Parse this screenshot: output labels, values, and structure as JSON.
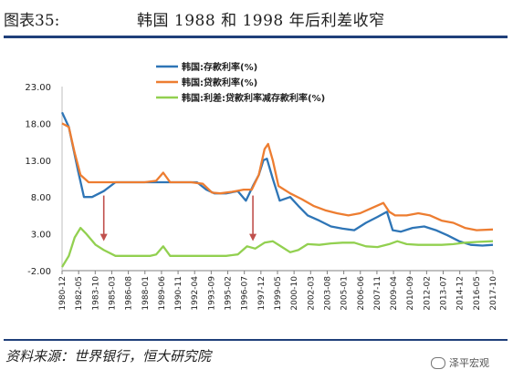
{
  "header": {
    "figure_label": "图表35:",
    "title": "韩国 1988 和 1998 年后利差收窄"
  },
  "footer": {
    "source": "资料来源：世界银行，恒大研究院",
    "watermark": "泽平宏观",
    "watermark_icon": "wechat-icon"
  },
  "colors": {
    "deposit": "#2e75b6",
    "loan": "#ed7d31",
    "spread": "#92d050",
    "arrow": "#c0504d",
    "rule": "#1f3f7a"
  },
  "chart_data": {
    "type": "line",
    "ylim": [
      -2,
      23
    ],
    "yticks": [
      "23.00",
      "18.00",
      "13.00",
      "8.00",
      "3.00",
      "-2.00"
    ],
    "ytick_values": [
      23,
      18,
      13,
      8,
      3,
      -2
    ],
    "xtick_labels": [
      "1980-12",
      "1982-05",
      "1983-10",
      "1985-03",
      "1986-08",
      "1988-01",
      "1989-06",
      "1990-11",
      "1992-04",
      "1993-09",
      "1995-02",
      "1996-07",
      "1997-12",
      "1999-05",
      "2000-10",
      "2002-03",
      "2003-08",
      "2005-01",
      "2006-06",
      "2007-11",
      "2009-04",
      "2010-09",
      "2012-02",
      "2013-07",
      "2014-12",
      "2016-05",
      "2017-10"
    ],
    "x_start": 1980.92,
    "x_end": 2017.9,
    "legend": {
      "placement": "top-center"
    },
    "series": [
      {
        "name": "韩国:存款利率(%)",
        "key": "deposit",
        "points": [
          [
            1980.92,
            19.5
          ],
          [
            1981.5,
            17.5
          ],
          [
            1982.3,
            11.5
          ],
          [
            1982.8,
            8.0
          ],
          [
            1983.5,
            8.0
          ],
          [
            1984.5,
            8.8
          ],
          [
            1985.5,
            10.0
          ],
          [
            1986.5,
            10.0
          ],
          [
            1987.5,
            10.0
          ],
          [
            1988.5,
            10.0
          ],
          [
            1989.5,
            10.0
          ],
          [
            1990.5,
            10.0
          ],
          [
            1991.5,
            10.0
          ],
          [
            1992.5,
            10.0
          ],
          [
            1993.3,
            9.0
          ],
          [
            1994.0,
            8.5
          ],
          [
            1995.0,
            8.5
          ],
          [
            1996.0,
            8.8
          ],
          [
            1996.7,
            7.5
          ],
          [
            1997.3,
            9.5
          ],
          [
            1997.8,
            11.0
          ],
          [
            1998.2,
            13.0
          ],
          [
            1998.5,
            13.2
          ],
          [
            1999.0,
            10.5
          ],
          [
            1999.6,
            7.5
          ],
          [
            2000.5,
            8.0
          ],
          [
            2001.2,
            6.8
          ],
          [
            2002.0,
            5.5
          ],
          [
            2003.0,
            4.8
          ],
          [
            2004.0,
            4.0
          ],
          [
            2005.0,
            3.7
          ],
          [
            2006.0,
            3.5
          ],
          [
            2007.0,
            4.5
          ],
          [
            2008.0,
            5.3
          ],
          [
            2008.8,
            6.0
          ],
          [
            2009.3,
            3.5
          ],
          [
            2010.0,
            3.3
          ],
          [
            2011.0,
            3.8
          ],
          [
            2012.0,
            4.0
          ],
          [
            2013.0,
            3.5
          ],
          [
            2014.0,
            2.8
          ],
          [
            2015.0,
            2.0
          ],
          [
            2016.0,
            1.5
          ],
          [
            2017.0,
            1.4
          ],
          [
            2017.9,
            1.5
          ]
        ]
      },
      {
        "name": "韩国:贷款利率(%)",
        "key": "loan",
        "points": [
          [
            1980.92,
            18.0
          ],
          [
            1981.5,
            17.5
          ],
          [
            1982.0,
            14.0
          ],
          [
            1982.5,
            11.0
          ],
          [
            1983.2,
            10.0
          ],
          [
            1984.0,
            10.0
          ],
          [
            1985.0,
            10.0
          ],
          [
            1986.0,
            10.0
          ],
          [
            1987.0,
            10.0
          ],
          [
            1988.0,
            10.0
          ],
          [
            1989.0,
            10.2
          ],
          [
            1989.6,
            11.3
          ],
          [
            1990.2,
            10.0
          ],
          [
            1991.0,
            10.0
          ],
          [
            1992.0,
            10.0
          ],
          [
            1993.0,
            9.8
          ],
          [
            1993.8,
            8.6
          ],
          [
            1994.5,
            8.5
          ],
          [
            1995.5,
            8.7
          ],
          [
            1996.5,
            9.0
          ],
          [
            1997.2,
            9.0
          ],
          [
            1997.8,
            11.0
          ],
          [
            1998.3,
            14.5
          ],
          [
            1998.6,
            15.2
          ],
          [
            1999.0,
            13.0
          ],
          [
            1999.5,
            9.5
          ],
          [
            2000.5,
            8.5
          ],
          [
            2001.5,
            7.7
          ],
          [
            2002.5,
            6.8
          ],
          [
            2003.5,
            6.2
          ],
          [
            2004.5,
            5.8
          ],
          [
            2005.5,
            5.5
          ],
          [
            2006.5,
            5.8
          ],
          [
            2007.5,
            6.5
          ],
          [
            2008.5,
            7.2
          ],
          [
            2009.0,
            6.0
          ],
          [
            2009.5,
            5.5
          ],
          [
            2010.5,
            5.5
          ],
          [
            2011.5,
            5.8
          ],
          [
            2012.5,
            5.5
          ],
          [
            2013.5,
            4.8
          ],
          [
            2014.5,
            4.5
          ],
          [
            2015.5,
            3.8
          ],
          [
            2016.5,
            3.5
          ],
          [
            2017.9,
            3.6
          ]
        ]
      },
      {
        "name": "韩国:利差:贷款利率减存款利率(%)",
        "key": "spread",
        "points": [
          [
            1980.92,
            -1.5
          ],
          [
            1981.5,
            0.0
          ],
          [
            1982.0,
            2.5
          ],
          [
            1982.5,
            3.8
          ],
          [
            1983.0,
            3.0
          ],
          [
            1983.8,
            1.5
          ],
          [
            1984.5,
            0.8
          ],
          [
            1985.5,
            0.0
          ],
          [
            1986.5,
            0.0
          ],
          [
            1987.5,
            0.0
          ],
          [
            1988.5,
            0.0
          ],
          [
            1989.0,
            0.2
          ],
          [
            1989.6,
            1.3
          ],
          [
            1990.2,
            0.0
          ],
          [
            1991.0,
            0.0
          ],
          [
            1992.0,
            0.0
          ],
          [
            1993.0,
            0.0
          ],
          [
            1994.0,
            0.0
          ],
          [
            1995.0,
            0.0
          ],
          [
            1996.0,
            0.2
          ],
          [
            1996.8,
            1.3
          ],
          [
            1997.5,
            1.0
          ],
          [
            1998.3,
            1.8
          ],
          [
            1999.0,
            2.0
          ],
          [
            1999.8,
            1.2
          ],
          [
            2000.5,
            0.5
          ],
          [
            2001.2,
            0.8
          ],
          [
            2002.0,
            1.6
          ],
          [
            2003.0,
            1.5
          ],
          [
            2004.0,
            1.7
          ],
          [
            2005.0,
            1.8
          ],
          [
            2006.0,
            1.8
          ],
          [
            2007.0,
            1.3
          ],
          [
            2008.0,
            1.2
          ],
          [
            2009.0,
            1.6
          ],
          [
            2009.7,
            2.0
          ],
          [
            2010.5,
            1.6
          ],
          [
            2011.5,
            1.5
          ],
          [
            2012.5,
            1.5
          ],
          [
            2013.5,
            1.5
          ],
          [
            2014.5,
            1.6
          ],
          [
            2015.5,
            1.8
          ],
          [
            2016.5,
            1.9
          ],
          [
            2017.9,
            2.0
          ]
        ]
      }
    ],
    "annotations": [
      {
        "type": "arrow",
        "x": 1984.5,
        "y_from": 8.2,
        "y_to": 2.0
      },
      {
        "type": "arrow",
        "x": 1997.3,
        "y_from": 8.2,
        "y_to": 2.0
      }
    ]
  }
}
